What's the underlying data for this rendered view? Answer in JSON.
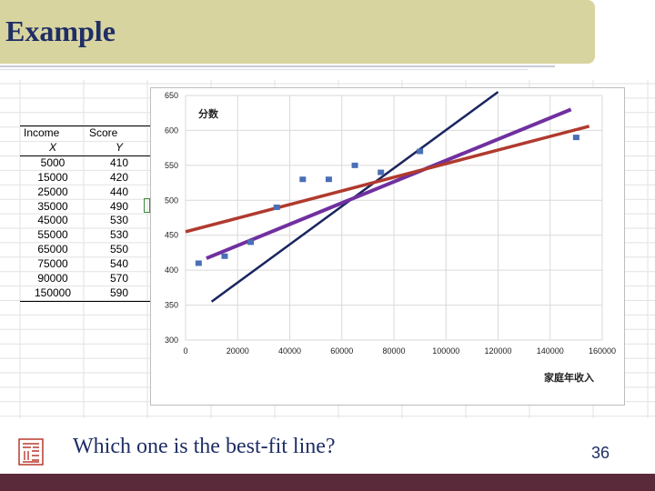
{
  "slide": {
    "title": "Example",
    "question": "Which one is the best-fit line?",
    "page_number": "36"
  },
  "table": {
    "headers": [
      "Income",
      "Score"
    ],
    "subheaders": [
      "X",
      "Y"
    ],
    "rows": [
      [
        "5000",
        "410"
      ],
      [
        "15000",
        "420"
      ],
      [
        "25000",
        "440"
      ],
      [
        "35000",
        "490"
      ],
      [
        "45000",
        "530"
      ],
      [
        "55000",
        "530"
      ],
      [
        "65000",
        "550"
      ],
      [
        "75000",
        "540"
      ],
      [
        "90000",
        "570"
      ],
      [
        "150000",
        "590"
      ]
    ]
  },
  "colors": {
    "title_bar": "#d8d4a0",
    "title_text": "#1f2e64",
    "bottom_bar": "#5a2a3a",
    "points": "#4a6fb5",
    "line_navy": "#1a2560",
    "line_purple": "#7030a0",
    "line_red": "#b03a2e"
  },
  "chart_data": {
    "type": "scatter",
    "ylabel": "分数",
    "xlabel": "家庭年收入",
    "xlim": [
      0,
      160000
    ],
    "ylim": [
      300,
      650
    ],
    "x_ticks": [
      0,
      20000,
      40000,
      60000,
      80000,
      100000,
      120000,
      140000,
      160000
    ],
    "y_ticks": [
      300,
      350,
      400,
      450,
      500,
      550,
      600,
      650
    ],
    "grid": true,
    "points": {
      "x": [
        5000,
        15000,
        25000,
        35000,
        45000,
        55000,
        65000,
        75000,
        90000,
        150000
      ],
      "y": [
        410,
        420,
        440,
        490,
        530,
        530,
        550,
        540,
        570,
        590
      ]
    },
    "lines": [
      {
        "x": [
          10000,
          120000
        ],
        "y": [
          355,
          655
        ],
        "color": "#1a2560"
      },
      {
        "x": [
          8000,
          148000
        ],
        "y": [
          417,
          630
        ],
        "color": "#7030a0"
      },
      {
        "x": [
          0,
          155000
        ],
        "y": [
          455,
          606
        ],
        "color": "#b03a2e"
      }
    ]
  }
}
